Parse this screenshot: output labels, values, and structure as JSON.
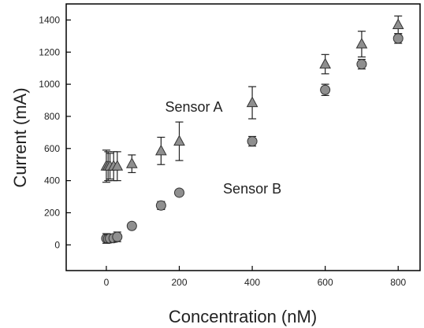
{
  "chart_data": {
    "type": "scatter",
    "title": "",
    "xlabel": "Concentration (nM)",
    "ylabel": "Current (mA)",
    "xlim": [
      -110,
      860
    ],
    "ylim": [
      -160,
      1500
    ],
    "xticks": [
      0,
      200,
      400,
      600,
      800
    ],
    "yticks": [
      0,
      200,
      400,
      600,
      800,
      1000,
      1200,
      1400
    ],
    "grid": false,
    "legend": "none",
    "annotations": [
      {
        "text": "Sensor A",
        "x": 240,
        "y": 830
      },
      {
        "text": "Sensor B",
        "x": 400,
        "y": 320
      }
    ],
    "series": [
      {
        "marker": "triangle",
        "color": "#8f8f8f",
        "points": [
          {
            "x": 0,
            "y": 490,
            "err": 100
          },
          {
            "x": 5,
            "y": 490,
            "err": 90
          },
          {
            "x": 10,
            "y": 490,
            "err": 80
          },
          {
            "x": 20,
            "y": 490,
            "err": 90
          },
          {
            "x": 30,
            "y": 490,
            "err": 90
          },
          {
            "x": 70,
            "y": 505,
            "err": 55
          },
          {
            "x": 150,
            "y": 585,
            "err": 85
          },
          {
            "x": 200,
            "y": 645,
            "err": 120
          },
          {
            "x": 400,
            "y": 885,
            "err": 100
          },
          {
            "x": 600,
            "y": 1125,
            "err": 60
          },
          {
            "x": 700,
            "y": 1250,
            "err": 80
          },
          {
            "x": 800,
            "y": 1370,
            "err": 55
          }
        ]
      },
      {
        "marker": "circle",
        "color": "#8f8f8f",
        "points": [
          {
            "x": 0,
            "y": 40,
            "err": 30
          },
          {
            "x": 5,
            "y": 38,
            "err": 25
          },
          {
            "x": 10,
            "y": 40,
            "err": 25
          },
          {
            "x": 20,
            "y": 42,
            "err": 25
          },
          {
            "x": 30,
            "y": 50,
            "err": 30
          },
          {
            "x": 70,
            "y": 118,
            "err": 15
          },
          {
            "x": 150,
            "y": 245,
            "err": 25
          },
          {
            "x": 200,
            "y": 325,
            "err": 15
          },
          {
            "x": 400,
            "y": 645,
            "err": 30
          },
          {
            "x": 600,
            "y": 965,
            "err": 35
          },
          {
            "x": 700,
            "y": 1125,
            "err": 30
          },
          {
            "x": 800,
            "y": 1285,
            "err": 30
          }
        ]
      }
    ]
  }
}
